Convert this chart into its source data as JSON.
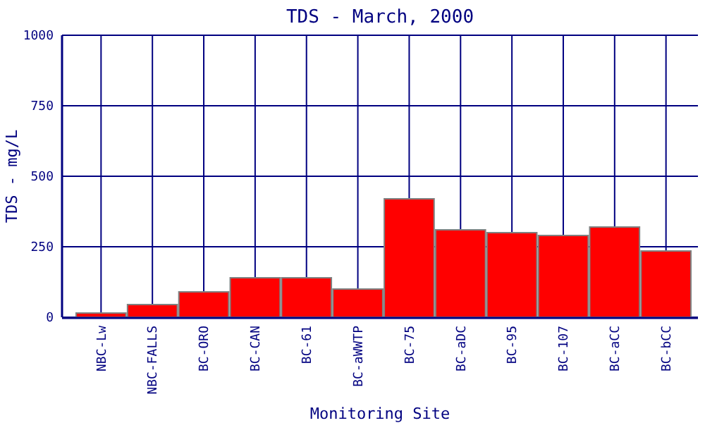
{
  "chart_data": {
    "type": "bar",
    "title": "TDS - March, 2000",
    "xlabel": "Monitoring Site",
    "ylabel": "TDS - mg/L",
    "categories": [
      "NBC-Lw",
      "NBC-FALLS",
      "BC-ORO",
      "BC-CAN",
      "BC-61",
      "BC-aWWTP",
      "BC-75",
      "BC-aDC",
      "BC-95",
      "BC-107",
      "BC-aCC",
      "BC-bCC"
    ],
    "values": [
      15,
      45,
      90,
      140,
      140,
      100,
      420,
      310,
      300,
      290,
      320,
      235
    ],
    "color": "#ff0000",
    "ylim": [
      0,
      1000
    ],
    "yticks": [
      0,
      250,
      500,
      750,
      1000
    ],
    "grid": true
  }
}
